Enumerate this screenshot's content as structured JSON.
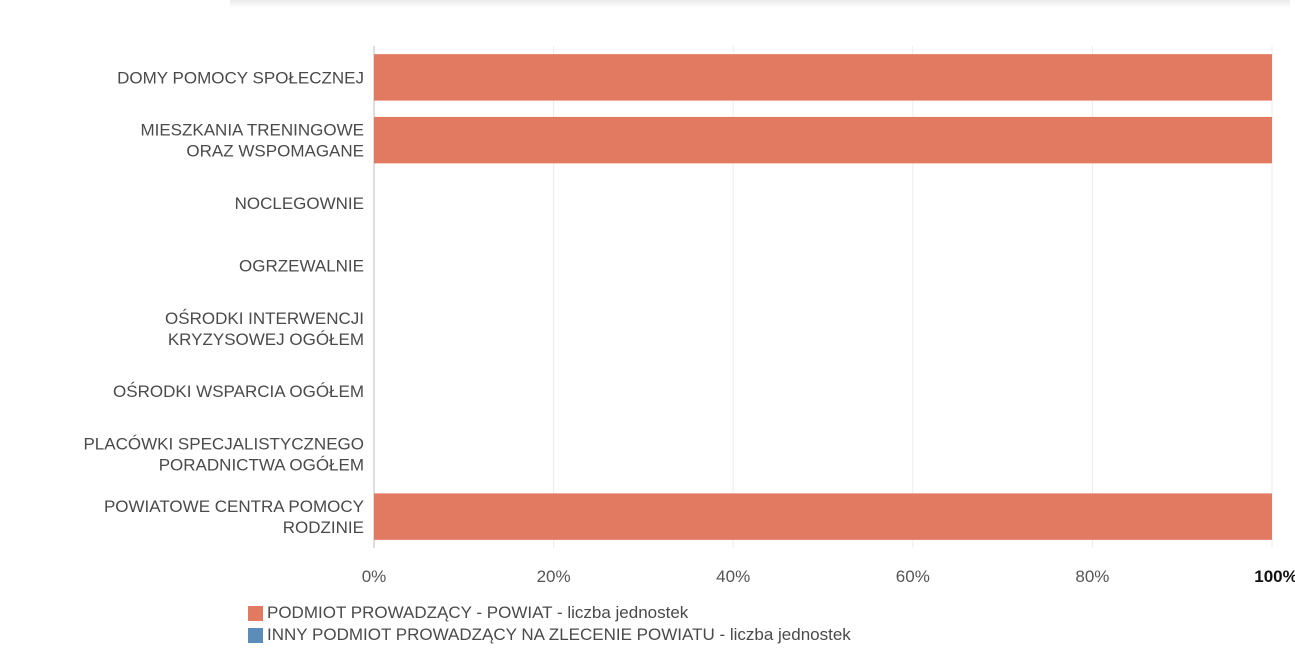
{
  "colors": {
    "background": "#ffffff",
    "grid": "#ececec",
    "axis": "#bdbdbd",
    "series_1": "#e27a62",
    "series_2": "#5b8db8"
  },
  "chart_data": {
    "type": "bar",
    "orientation": "horizontal",
    "stacked_percent": true,
    "title": "",
    "xlabel": "",
    "ylabel": "",
    "xlim": [
      0,
      100
    ],
    "grid": true,
    "legend_position": "bottom",
    "categories": [
      [
        "DOMY POMOCY SPOŁECZNEJ"
      ],
      [
        "MIESZKANIA TRENINGOWE",
        "ORAZ WSPOMAGANE"
      ],
      [
        "NOCLEGOWNIE"
      ],
      [
        "OGRZEWALNIE"
      ],
      [
        "OŚRODKI INTERWENCJI",
        "KRYZYSOWEJ OGÓŁEM"
      ],
      [
        "OŚRODKI WSPARCIA OGÓŁEM"
      ],
      [
        "PLACÓWKI SPECJALISTYCZNEGO",
        "PORADNICTWA OGÓŁEM"
      ],
      [
        "POWIATOWE CENTRA POMOCY",
        "RODZINIE"
      ]
    ],
    "x_ticks": [
      "0%",
      "20%",
      "40%",
      "60%",
      "80%",
      "100%"
    ],
    "series": [
      {
        "name": "PODMIOT PROWADZĄCY - POWIAT - liczba jednostek",
        "color": "#e27a62",
        "values": [
          100,
          100,
          0,
          0,
          0,
          0,
          0,
          100
        ]
      },
      {
        "name": "INNY PODMIOT PROWADZĄCY NA ZLECENIE POWIATU - liczba jednostek",
        "color": "#5b8db8",
        "values": [
          0,
          0,
          0,
          0,
          0,
          0,
          0,
          0
        ]
      }
    ]
  }
}
